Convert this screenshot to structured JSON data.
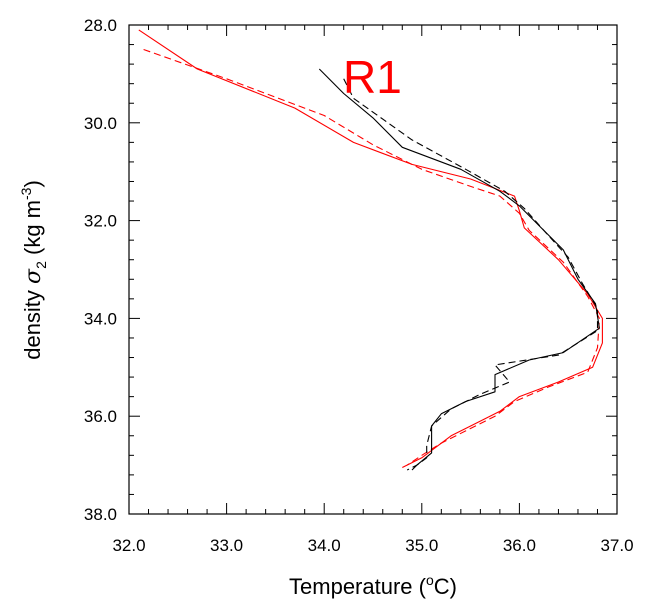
{
  "chart_data": {
    "type": "line",
    "panel_label": "R1",
    "xlabel": {
      "main": "Temperature (",
      "sup": "o",
      "unit": "C)"
    },
    "ylabel": {
      "main": "density ",
      "symbol": "σ",
      "sub": "2",
      "unit_open": " (kg m",
      "sup": "-3",
      "unit_close": ")"
    },
    "xlim": [
      32.0,
      37.0
    ],
    "ylim": [
      28.0,
      38.0
    ],
    "y_inverted": true,
    "grid": false,
    "x_ticks": [
      "32.0",
      "33.0",
      "34.0",
      "35.0",
      "36.0",
      "37.0"
    ],
    "y_ticks": [
      "28.0",
      "30.0",
      "32.0",
      "34.0",
      "36.0",
      "38.0"
    ],
    "colors": {
      "red": "#ff0000",
      "black": "#000000",
      "label": "#ff0000"
    },
    "series": [
      {
        "color": "red",
        "dash": false,
        "points": [
          [
            32.1,
            28.1
          ],
          [
            32.7,
            28.9
          ],
          [
            33.7,
            29.7
          ],
          [
            34.3,
            30.4
          ],
          [
            34.9,
            30.85
          ],
          [
            35.5,
            31.15
          ],
          [
            35.95,
            31.5
          ],
          [
            36.0,
            31.8
          ],
          [
            36.05,
            32.15
          ],
          [
            36.4,
            32.8
          ],
          [
            36.7,
            33.5
          ],
          [
            36.85,
            34.0
          ],
          [
            36.85,
            34.5
          ],
          [
            36.75,
            35.0
          ],
          [
            36.4,
            35.3
          ],
          [
            36.0,
            35.6
          ],
          [
            35.8,
            35.9
          ],
          [
            35.5,
            36.2
          ],
          [
            35.3,
            36.4
          ],
          [
            35.1,
            36.7
          ],
          [
            35.0,
            36.85
          ],
          [
            34.8,
            37.05
          ]
        ]
      },
      {
        "color": "red",
        "dash": true,
        "points": [
          [
            32.15,
            28.5
          ],
          [
            33.0,
            29.1
          ],
          [
            34.0,
            29.85
          ],
          [
            34.5,
            30.45
          ],
          [
            35.0,
            30.95
          ],
          [
            35.5,
            31.3
          ],
          [
            35.8,
            31.5
          ],
          [
            36.0,
            31.85
          ],
          [
            36.1,
            32.2
          ],
          [
            36.45,
            32.85
          ],
          [
            36.7,
            33.55
          ],
          [
            36.82,
            34.0
          ],
          [
            36.8,
            34.6
          ],
          [
            36.7,
            35.1
          ],
          [
            36.3,
            35.4
          ],
          [
            35.95,
            35.7
          ],
          [
            35.75,
            36.0
          ],
          [
            35.45,
            36.3
          ],
          [
            35.2,
            36.55
          ],
          [
            35.0,
            36.8
          ],
          [
            34.85,
            37.0
          ]
        ]
      },
      {
        "color": "black",
        "dash": false,
        "points": [
          [
            33.95,
            28.9
          ],
          [
            34.2,
            29.4
          ],
          [
            34.5,
            29.9
          ],
          [
            34.8,
            30.5
          ],
          [
            35.4,
            30.95
          ],
          [
            35.8,
            31.4
          ],
          [
            36.0,
            31.7
          ],
          [
            36.2,
            32.1
          ],
          [
            36.45,
            32.6
          ],
          [
            36.6,
            33.2
          ],
          [
            36.78,
            33.7
          ],
          [
            36.82,
            34.2
          ],
          [
            36.45,
            34.7
          ],
          [
            36.1,
            34.85
          ],
          [
            35.75,
            35.15
          ],
          [
            35.75,
            35.5
          ],
          [
            35.45,
            35.7
          ],
          [
            35.2,
            35.95
          ],
          [
            35.1,
            36.2
          ],
          [
            35.1,
            36.5
          ],
          [
            35.1,
            36.75
          ],
          [
            34.95,
            37.0
          ],
          [
            34.9,
            37.1
          ]
        ]
      },
      {
        "color": "black",
        "dash": true,
        "points": [
          [
            34.2,
            29.1
          ],
          [
            34.3,
            29.5
          ],
          [
            34.9,
            30.35
          ],
          [
            35.45,
            30.95
          ],
          [
            35.85,
            31.4
          ],
          [
            36.05,
            31.75
          ],
          [
            36.25,
            32.2
          ],
          [
            36.5,
            32.75
          ],
          [
            36.65,
            33.3
          ],
          [
            36.8,
            33.8
          ],
          [
            36.8,
            34.25
          ],
          [
            36.4,
            34.75
          ],
          [
            35.75,
            34.95
          ],
          [
            35.9,
            35.3
          ],
          [
            35.6,
            35.55
          ],
          [
            35.3,
            35.85
          ],
          [
            35.1,
            36.2
          ],
          [
            35.05,
            36.6
          ],
          [
            35.05,
            36.85
          ],
          [
            34.95,
            37.0
          ],
          [
            34.85,
            37.1
          ]
        ]
      }
    ]
  }
}
